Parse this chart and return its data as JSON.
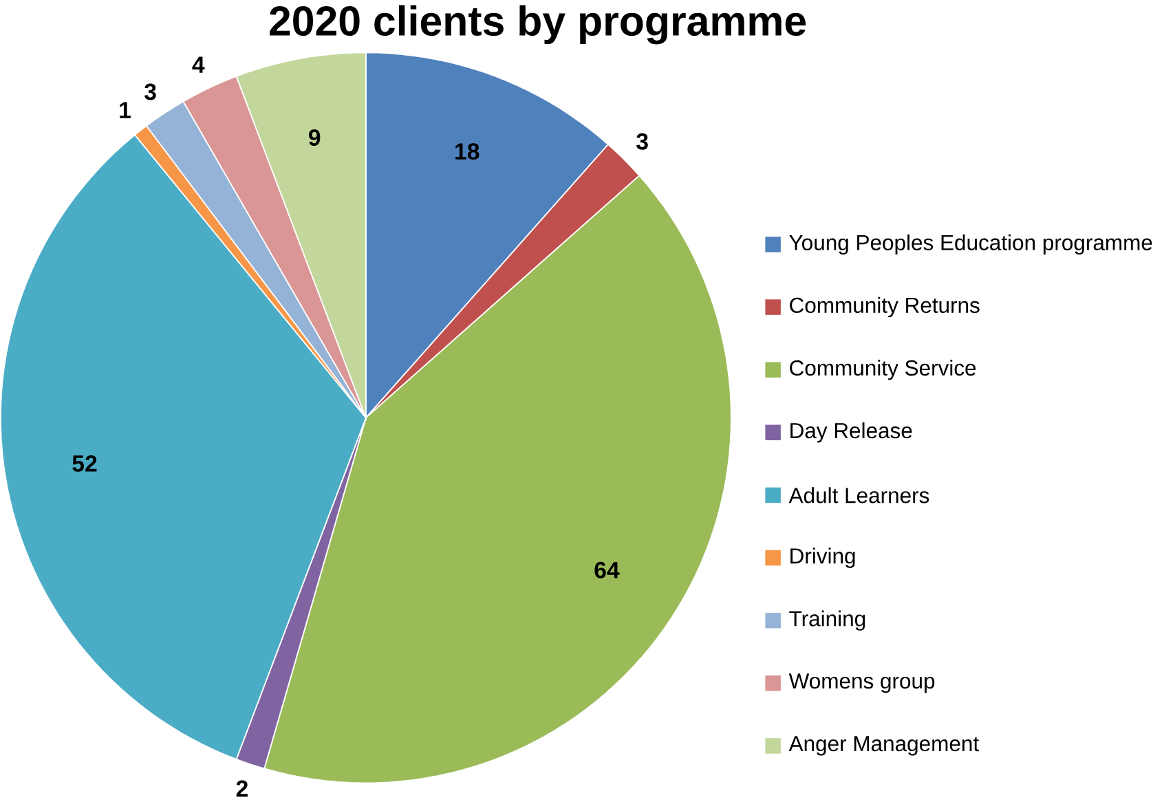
{
  "chart_data": {
    "type": "pie",
    "title": "2020 clients by programme",
    "categories": [
      "Young Peoples Education programme",
      "Community Returns",
      "Community Service",
      "Day Release",
      "Adult Learners",
      "Driving",
      "Training",
      "Womens group",
      "Anger Management"
    ],
    "values": [
      18,
      3,
      64,
      2,
      52,
      1,
      3,
      4,
      9
    ],
    "colors": [
      "#4f81bd",
      "#c0504d",
      "#9bbb59",
      "#8064a2",
      "#4bacc6",
      "#f79646",
      "#95b3d7",
      "#d99694",
      "#c3d69b"
    ],
    "data_labels": true,
    "legend": "right"
  }
}
